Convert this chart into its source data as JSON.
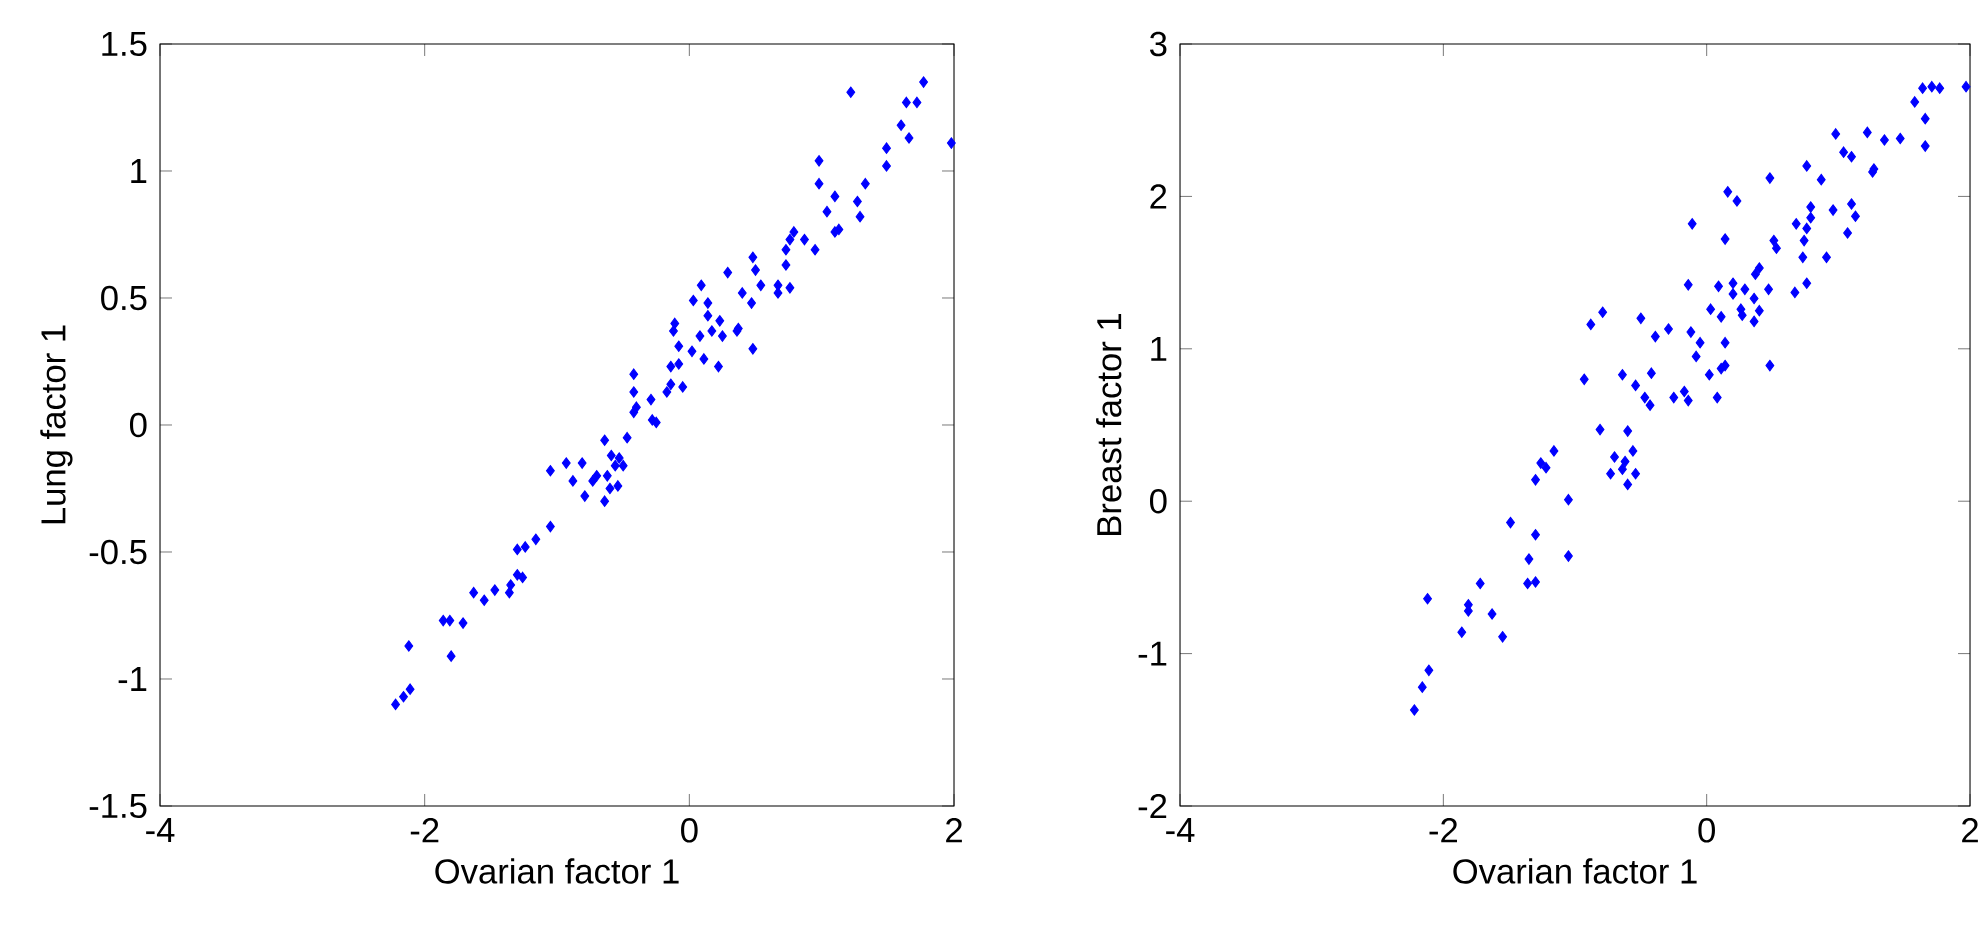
{
  "chart_data": [
    {
      "type": "scatter",
      "xlabel": "Ovarian factor 1",
      "ylabel": "Lung factor 1",
      "xlim": [
        -4,
        2
      ],
      "ylim": [
        -1.5,
        1.5
      ],
      "xticks": [
        -4,
        -2,
        0,
        2
      ],
      "yticks": [
        -1.5,
        -1,
        -0.5,
        0,
        0.5,
        1,
        1.5
      ],
      "marker": "diamond",
      "series": [
        {
          "color": "#0000ff",
          "x": [
            1.22,
            1.77,
            1.64,
            1.72,
            1.98,
            1.6,
            1.66,
            1.49,
            1.49,
            0.98,
            0.98,
            1.33,
            1.1,
            1.27,
            1.04,
            1.29,
            1.1,
            1.13,
            0.79,
            0.76,
            0.87,
            0.95,
            0.73,
            0.48,
            0.5,
            0.73,
            0.29,
            0.09,
            0.54,
            0.67,
            0.4,
            0.76,
            0.67,
            0.03,
            0.14,
            0.47,
            0.14,
            0.23,
            -0.11,
            -0.12,
            0.08,
            0.17,
            0.25,
            0.37,
            0.36,
            -0.08,
            0.02,
            0.48,
            0.11,
            -0.14,
            -0.08,
            0.22,
            -0.42,
            -0.14,
            -0.05,
            -0.42,
            -0.29,
            -0.17,
            -0.4,
            -0.42,
            -0.28,
            -0.25,
            -1.05,
            -0.93,
            -0.81,
            -0.88,
            -0.79,
            -0.7,
            -0.73,
            -0.64,
            -0.47,
            -0.59,
            -0.53,
            -0.5,
            -0.56,
            -0.62,
            -0.6,
            -0.54,
            -0.64,
            -1.05,
            -1.16,
            -1.24,
            -1.3,
            -1.3,
            -1.26,
            -1.35,
            -1.36,
            -1.47,
            -1.63,
            -1.55,
            -1.86,
            -1.81,
            -1.71,
            -2.12,
            -1.8,
            -2.11,
            -2.16,
            -2.22
          ],
          "values": [
            1.31,
            1.35,
            1.27,
            1.27,
            1.11,
            1.18,
            1.13,
            1.09,
            1.02,
            1.04,
            0.95,
            0.95,
            0.9,
            0.88,
            0.84,
            0.82,
            0.76,
            0.77,
            0.76,
            0.73,
            0.73,
            0.69,
            0.69,
            0.66,
            0.61,
            0.63,
            0.6,
            0.55,
            0.55,
            0.55,
            0.52,
            0.54,
            0.52,
            0.49,
            0.48,
            0.48,
            0.43,
            0.41,
            0.4,
            0.37,
            0.35,
            0.37,
            0.35,
            0.38,
            0.37,
            0.31,
            0.29,
            0.3,
            0.26,
            0.23,
            0.24,
            0.23,
            0.2,
            0.16,
            0.15,
            0.13,
            0.1,
            0.13,
            0.07,
            0.05,
            0.02,
            0.01,
            -0.18,
            -0.15,
            -0.15,
            -0.22,
            -0.28,
            -0.2,
            -0.22,
            -0.06,
            -0.05,
            -0.12,
            -0.13,
            -0.16,
            -0.16,
            -0.2,
            -0.25,
            -0.24,
            -0.3,
            -0.4,
            -0.45,
            -0.48,
            -0.49,
            -0.59,
            -0.6,
            -0.63,
            -0.66,
            -0.65,
            -0.66,
            -0.69,
            -0.77,
            -0.77,
            -0.78,
            -0.87,
            -0.91,
            -1.04,
            -1.07,
            -1.1
          ]
        }
      ]
    },
    {
      "type": "scatter",
      "xlabel": "Ovarian factor 1",
      "ylabel": "Breast factor 1",
      "xlim": [
        -4,
        2
      ],
      "ylim": [
        -2,
        3
      ],
      "xticks": [
        -4,
        -2,
        0,
        2
      ],
      "yticks": [
        -2,
        -1,
        0,
        1,
        2,
        3
      ],
      "marker": "diamond",
      "series": [
        {
          "color": "#0000ff",
          "x": [
            1.97,
            1.64,
            1.71,
            1.77,
            1.58,
            1.66,
            1.66,
            0.98,
            1.22,
            1.35,
            1.47,
            1.04,
            1.1,
            0.76,
            1.27,
            1.26,
            0.48,
            0.87,
            0.16,
            0.23,
            0.79,
            1.1,
            0.96,
            1.13,
            0.68,
            0.79,
            0.76,
            -0.11,
            1.07,
            0.14,
            0.51,
            0.53,
            0.74,
            0.73,
            0.91,
            0.4,
            0.37,
            -0.14,
            0.09,
            0.2,
            0.29,
            0.47,
            0.67,
            0.76,
            0.2,
            0.36,
            -0.79,
            -0.88,
            -0.5,
            0.03,
            0.11,
            0.26,
            0.27,
            0.4,
            0.36,
            -0.29,
            -0.39,
            -0.12,
            -0.05,
            0.14,
            -0.08,
            0.14,
            0.11,
            0.02,
            0.48,
            -0.93,
            -0.64,
            -0.54,
            -0.42,
            -0.47,
            -0.43,
            -0.25,
            -0.17,
            -0.14,
            0.08,
            -0.81,
            -0.6,
            -1.16,
            -1.26,
            -1.22,
            -1.3,
            -1.05,
            -0.7,
            -0.62,
            -0.56,
            -0.64,
            -0.73,
            -0.54,
            -0.6,
            -1.49,
            -1.3,
            -1.35,
            -1.05,
            -1.36,
            -1.3,
            -1.72,
            -2.12,
            -1.81,
            -1.81,
            -1.63,
            -1.86,
            -1.55,
            -2.11,
            -2.16,
            -2.22
          ],
          "values": [
            2.72,
            2.71,
            2.72,
            2.71,
            2.62,
            2.51,
            2.33,
            2.41,
            2.42,
            2.37,
            2.38,
            2.29,
            2.26,
            2.2,
            2.18,
            2.16,
            2.12,
            2.11,
            2.03,
            1.97,
            1.93,
            1.95,
            1.91,
            1.87,
            1.82,
            1.86,
            1.79,
            1.82,
            1.76,
            1.72,
            1.71,
            1.66,
            1.71,
            1.6,
            1.6,
            1.53,
            1.49,
            1.42,
            1.41,
            1.43,
            1.39,
            1.39,
            1.37,
            1.43,
            1.36,
            1.33,
            1.24,
            1.16,
            1.2,
            1.26,
            1.21,
            1.26,
            1.22,
            1.25,
            1.18,
            1.13,
            1.08,
            1.11,
            1.04,
            1.04,
            0.95,
            0.89,
            0.87,
            0.83,
            0.89,
            0.8,
            0.83,
            0.76,
            0.84,
            0.68,
            0.63,
            0.68,
            0.72,
            0.66,
            0.68,
            0.47,
            0.46,
            0.33,
            0.25,
            0.22,
            0.14,
            0.01,
            0.29,
            0.26,
            0.33,
            0.21,
            0.18,
            0.18,
            0.11,
            -0.14,
            -0.22,
            -0.38,
            -0.36,
            -0.54,
            -0.53,
            -0.54,
            -0.64,
            -0.68,
            -0.72,
            -0.74,
            -0.86,
            -0.89,
            -1.11,
            -1.22,
            -1.37
          ]
        }
      ]
    }
  ]
}
